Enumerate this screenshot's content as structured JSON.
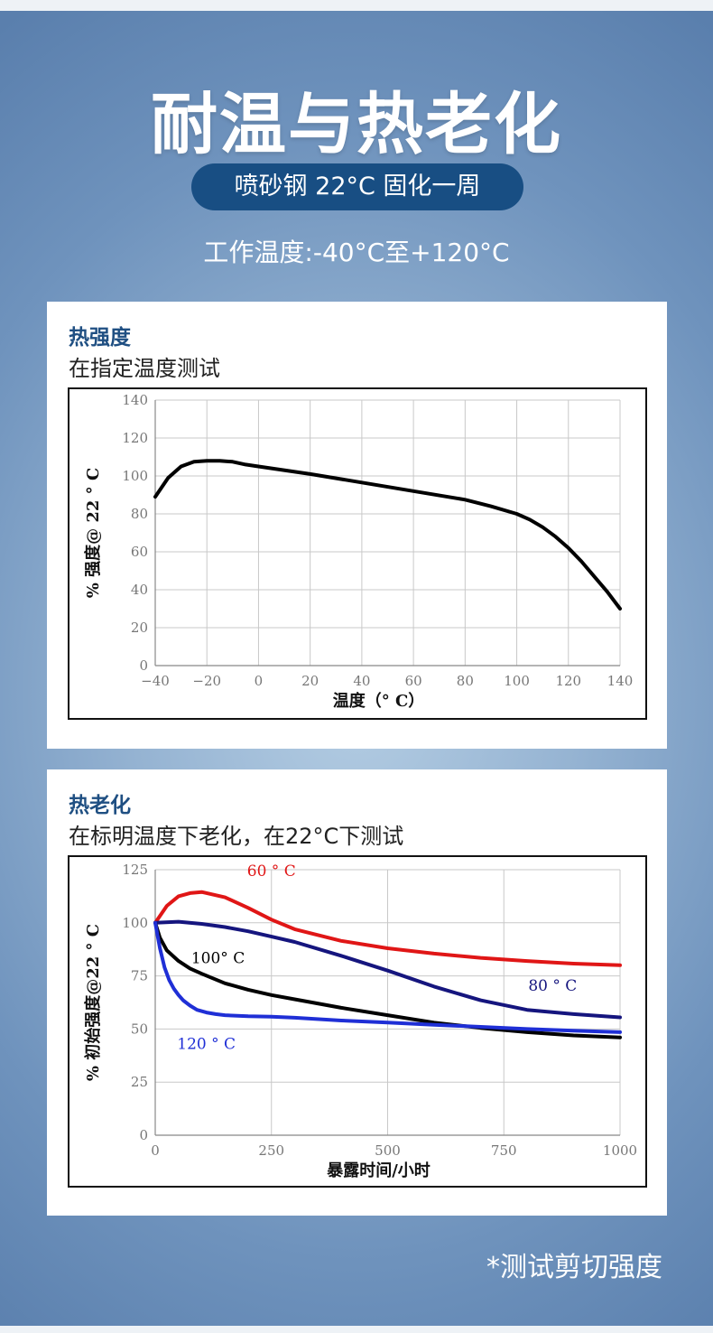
{
  "header": {
    "title": "耐温与热老化",
    "pill": "喷砂钢 22°C 固化一周",
    "working_temp": "工作温度:-40°C至+120°C"
  },
  "panels": [
    {
      "title": "热强度",
      "subtitle": "在指定温度测试"
    },
    {
      "title": "热老化",
      "subtitle": "在标明温度下老化，在22°C下测试"
    }
  ],
  "footnote": "*测试剪切强度",
  "colors": {
    "pill": "#184e83",
    "panel_title": "#1f4f82"
  },
  "chart_data": [
    {
      "type": "line",
      "xlabel": "温度（° C）",
      "ylabel": "% 强度@ 22 ° C",
      "xlim": [
        -40,
        140
      ],
      "ylim": [
        0,
        140
      ],
      "xticks": [
        -40,
        -20,
        0,
        20,
        40,
        60,
        80,
        100,
        120,
        140
      ],
      "yticks": [
        0,
        20,
        40,
        60,
        80,
        100,
        120,
        140
      ],
      "grid": true,
      "series": [
        {
          "color": "#000000",
          "x": [
            -40,
            -35,
            -30,
            -25,
            -20,
            -15,
            -10,
            -5,
            0,
            20,
            40,
            60,
            80,
            90,
            100,
            105,
            110,
            115,
            120,
            125,
            130,
            135,
            140
          ],
          "y": [
            89,
            99,
            105,
            107.5,
            108,
            108,
            107.5,
            106,
            105,
            101,
            96.5,
            92,
            87.5,
            84,
            80,
            77,
            73,
            68,
            62,
            55,
            47,
            39,
            30
          ]
        }
      ]
    },
    {
      "type": "line",
      "xlabel": "暴露时间/小时",
      "ylabel": "% 初始强度@22 ° C",
      "xlim": [
        0,
        1000
      ],
      "ylim": [
        0,
        125
      ],
      "xticks": [
        0,
        250,
        500,
        750,
        1000
      ],
      "yticks": [
        0,
        25,
        50,
        75,
        100,
        125
      ],
      "grid": true,
      "series": [
        {
          "name": "60 ° C",
          "color": "#e01616",
          "x": [
            0,
            25,
            50,
            75,
            100,
            150,
            200,
            250,
            300,
            400,
            500,
            600,
            700,
            800,
            900,
            1000
          ],
          "y": [
            100,
            108,
            112.5,
            114,
            114.5,
            112,
            107,
            101.5,
            97,
            91.5,
            88,
            85.5,
            83.5,
            82,
            80.8,
            80
          ]
        },
        {
          "name": "80 ° C",
          "color": "#15157e",
          "x": [
            0,
            50,
            100,
            150,
            200,
            250,
            300,
            400,
            500,
            600,
            700,
            800,
            900,
            1000
          ],
          "y": [
            100,
            100.5,
            99.5,
            98,
            96,
            93.5,
            91,
            84.5,
            77.5,
            70,
            63.5,
            59,
            57,
            55.5
          ]
        },
        {
          "name": "100° C",
          "color": "#000000",
          "x": [
            0,
            10,
            25,
            50,
            75,
            100,
            150,
            200,
            250,
            300,
            400,
            500,
            600,
            700,
            800,
            900,
            1000
          ],
          "y": [
            100,
            93,
            87,
            82,
            78.5,
            76,
            71.5,
            68.5,
            66,
            64,
            60,
            56.5,
            53,
            50.5,
            48.5,
            47,
            46
          ]
        },
        {
          "name": "120 ° C",
          "color": "#1f2fd6",
          "x": [
            0,
            10,
            20,
            30,
            40,
            50,
            60,
            75,
            90,
            110,
            130,
            150,
            200,
            250,
            300,
            400,
            500,
            600,
            700,
            800,
            900,
            1000
          ],
          "y": [
            100,
            88,
            79,
            73,
            69,
            66,
            63.5,
            61,
            59,
            57.8,
            57,
            56.5,
            56,
            55.8,
            55.3,
            54,
            53,
            52,
            51,
            50,
            49.2,
            48.5
          ]
        }
      ],
      "annotations": [
        {
          "text": "60 ° C",
          "x": 250,
          "y": 122,
          "color": "#e01616"
        },
        {
          "text": "100° C",
          "x": 135,
          "y": 81,
          "color": "#000000"
        },
        {
          "text": "80 ° C",
          "x": 855,
          "y": 68,
          "color": "#15157e"
        },
        {
          "text": "120 ° C",
          "x": 110,
          "y": 40.5,
          "color": "#1f2fd6"
        }
      ]
    }
  ]
}
